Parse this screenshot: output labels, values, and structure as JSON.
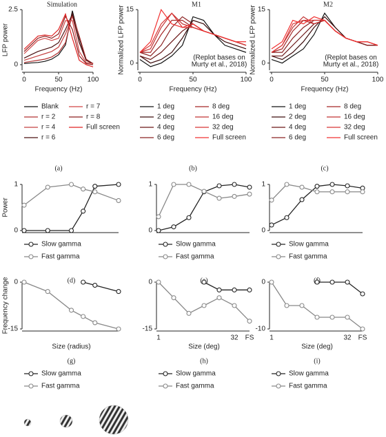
{
  "chart_data": [
    {
      "type": "line",
      "label": "(a)",
      "title": "Simulation",
      "xlabel": "Frequency (Hz)",
      "ylabel": "LFP power",
      "x": [
        0,
        10,
        20,
        30,
        40,
        50,
        60,
        70,
        80,
        90,
        100
      ],
      "xlim": [
        0,
        100
      ],
      "xticks": [
        0,
        50,
        100
      ],
      "ylim": [
        -0.25,
        2.5
      ],
      "yticks": [
        0,
        2.5
      ],
      "markers": false,
      "series": [
        {
          "name": "Blank",
          "color": "#111111",
          "values": [
            0.05,
            0.08,
            0.1,
            0.15,
            0.25,
            0.45,
            0.9,
            2.45,
            1.2,
            0.2,
            0.05
          ]
        },
        {
          "name": "r = 2",
          "color": "#b03030",
          "values": [
            0.1,
            0.15,
            0.2,
            0.25,
            0.35,
            0.55,
            1.0,
            2.3,
            1.3,
            0.25,
            0.05
          ]
        },
        {
          "name": "r = 4",
          "color": "#c44040",
          "values": [
            0.2,
            0.3,
            0.4,
            0.5,
            0.6,
            0.8,
            1.4,
            2.2,
            1.0,
            0.2,
            0.05
          ]
        },
        {
          "name": "r = 6",
          "color": "#4a1010",
          "values": [
            0.3,
            0.45,
            0.6,
            0.7,
            0.8,
            1.0,
            1.6,
            2.3,
            1.0,
            0.2,
            0.05
          ]
        },
        {
          "name": "r = 7",
          "color": "#d04545",
          "values": [
            0.5,
            0.8,
            1.1,
            1.2,
            1.1,
            1.2,
            2.0,
            2.0,
            0.6,
            0.1,
            0.05
          ]
        },
        {
          "name": "r = 8",
          "color": "#8a1c1c",
          "values": [
            0.6,
            0.9,
            1.2,
            1.3,
            1.2,
            1.4,
            2.2,
            1.6,
            0.4,
            0.05,
            0
          ]
        },
        {
          "name": "Full screen",
          "color": "#e02020",
          "values": [
            0.7,
            1.0,
            1.3,
            1.35,
            1.3,
            1.6,
            2.3,
            1.2,
            0.2,
            0,
            -0.1
          ]
        }
      ]
    },
    {
      "type": "line",
      "label": "(b)",
      "title": "M1",
      "xlabel": "Frequency (Hz)",
      "ylabel": "Normalized LFP power",
      "annotation": [
        "(Replot bases on",
        "Murty et al., 2018)"
      ],
      "x": [
        0,
        10,
        20,
        30,
        40,
        50,
        60,
        70,
        80,
        90,
        100
      ],
      "xlim": [
        0,
        100
      ],
      "xticks": [
        0,
        50,
        100
      ],
      "ylim": [
        -2,
        15
      ],
      "yticks": [
        0,
        15
      ],
      "markers": false,
      "series": [
        {
          "name": "1 deg",
          "color": "#111111",
          "values": [
            1,
            -1,
            0,
            2,
            5,
            13,
            12,
            8,
            5,
            4,
            3
          ]
        },
        {
          "name": "2 deg",
          "color": "#3a0a0a",
          "values": [
            2,
            0,
            1,
            3,
            7,
            12,
            11,
            8,
            6,
            5,
            4
          ]
        },
        {
          "name": "4 deg",
          "color": "#6a1515",
          "values": [
            2,
            1,
            3,
            6,
            9,
            11,
            9,
            8,
            7,
            6,
            5
          ]
        },
        {
          "name": "6 deg",
          "color": "#8a2020",
          "values": [
            3,
            2,
            5,
            10,
            13,
            11,
            9,
            8,
            7,
            6,
            5
          ]
        },
        {
          "name": "8 deg",
          "color": "#a52525",
          "values": [
            3,
            3,
            8,
            12,
            12,
            10,
            9,
            8,
            7,
            6,
            5
          ]
        },
        {
          "name": "16 deg",
          "color": "#c03030",
          "values": [
            3,
            4,
            10,
            14,
            11,
            10,
            9,
            8,
            7,
            6,
            5
          ]
        },
        {
          "name": "32 deg",
          "color": "#d83535",
          "values": [
            3,
            5,
            11,
            14,
            10,
            10,
            9,
            8,
            7,
            6,
            5
          ]
        },
        {
          "name": "Full screen",
          "color": "#f03030",
          "values": [
            3,
            6,
            15,
            11,
            10,
            11,
            9,
            8,
            7,
            6,
            6
          ]
        }
      ]
    },
    {
      "type": "line",
      "label": "(c)",
      "title": "M2",
      "xlabel": "Frequency (Hz)",
      "ylabel": "Normalized LFP power",
      "annotation": [
        "(Replot bases on",
        "Murty et al., 2018)"
      ],
      "x": [
        0,
        10,
        20,
        30,
        40,
        50,
        60,
        70,
        80,
        90,
        100
      ],
      "xlim": [
        0,
        100
      ],
      "xticks": [
        0,
        50,
        100
      ],
      "ylim": [
        -2,
        15
      ],
      "yticks": [
        0,
        15
      ],
      "markers": false,
      "series": [
        {
          "name": "1 deg",
          "color": "#111111",
          "values": [
            1,
            0,
            2,
            4,
            8,
            14,
            10,
            7,
            6,
            5,
            5
          ]
        },
        {
          "name": "2 deg",
          "color": "#3a0a0a",
          "values": [
            2,
            1,
            3,
            6,
            10,
            13,
            10,
            7,
            6,
            5,
            5
          ]
        },
        {
          "name": "4 deg",
          "color": "#6a1515",
          "values": [
            2,
            2,
            5,
            8,
            11,
            12,
            9,
            7,
            6,
            5,
            5
          ]
        },
        {
          "name": "6 deg",
          "color": "#8a2020",
          "values": [
            3,
            3,
            7,
            10,
            12,
            12,
            9,
            7,
            6,
            5,
            5
          ]
        },
        {
          "name": "8 deg",
          "color": "#a52525",
          "values": [
            3,
            4,
            9,
            12,
            11,
            12,
            9,
            7,
            6,
            6,
            5
          ]
        },
        {
          "name": "16 deg",
          "color": "#c03030",
          "values": [
            3,
            5,
            10,
            13,
            11,
            12,
            9,
            7,
            6,
            6,
            5
          ]
        },
        {
          "name": "32 deg",
          "color": "#d83535",
          "values": [
            3,
            5,
            11,
            12,
            12,
            12,
            9,
            7,
            6,
            6,
            5
          ]
        },
        {
          "name": "Full screen",
          "color": "#f03030",
          "values": [
            4,
            6,
            12,
            11,
            13,
            12,
            9,
            7,
            6,
            6,
            5
          ]
        }
      ]
    },
    {
      "type": "line",
      "label": "(d)",
      "ylabel": "Power",
      "x": [
        2,
        4,
        6,
        7,
        8,
        10
      ],
      "xlim": [
        2,
        10
      ],
      "ylim": [
        0,
        1
      ],
      "yticks": [
        0,
        1
      ],
      "markers": true,
      "series": [
        {
          "name": "Slow gamma",
          "color": "#222222",
          "values": [
            0,
            0,
            0,
            0.42,
            0.96,
            1
          ]
        },
        {
          "name": "Fast gamma",
          "color": "#888888",
          "values": [
            0.55,
            0.94,
            1,
            0.9,
            0.84,
            0.65
          ]
        }
      ]
    },
    {
      "type": "line",
      "label": "(e)",
      "categories": [
        null,
        null,
        null,
        null,
        null,
        null,
        null
      ],
      "ylim": [
        0,
        1
      ],
      "yticks": [
        0,
        1
      ],
      "markers": true,
      "series": [
        {
          "name": "Slow gamma",
          "color": "#222222",
          "values": [
            0,
            0.08,
            0.28,
            0.84,
            0.97,
            1,
            0.94
          ]
        },
        {
          "name": "Fast gamma",
          "color": "#888888",
          "values": [
            0.3,
            1,
            1,
            0.85,
            0.7,
            0.74,
            0.79
          ]
        }
      ]
    },
    {
      "type": "line",
      "label": "(f)",
      "categories": [
        null,
        null,
        null,
        null,
        null,
        null,
        null
      ],
      "ylim": [
        0,
        1
      ],
      "yticks": [
        0,
        1
      ],
      "markers": true,
      "series": [
        {
          "name": "Slow gamma",
          "color": "#222222",
          "values": [
            0.12,
            0.28,
            0.67,
            0.96,
            1,
            0.97,
            0.92
          ]
        },
        {
          "name": "Fast gamma",
          "color": "#888888",
          "values": [
            0.66,
            1,
            0.94,
            0.84,
            0.84,
            0.84,
            0.84
          ]
        }
      ]
    },
    {
      "type": "line",
      "label": "(g)",
      "xlabel": "Size (radius)",
      "ylabel": "Frequency change",
      "x": [
        2,
        4,
        6,
        7,
        8,
        10
      ],
      "xlim": [
        2,
        10
      ],
      "ylim": [
        -15,
        0
      ],
      "yticks": [
        -15,
        0
      ],
      "markers": true,
      "series": [
        {
          "name": "Slow gamma",
          "color": "#222222",
          "values": [
            null,
            null,
            null,
            0,
            -1,
            -3
          ]
        },
        {
          "name": "Fast gamma",
          "color": "#888888",
          "values": [
            0,
            -3,
            -9,
            -11,
            -13,
            -15
          ]
        }
      ]
    },
    {
      "type": "line",
      "label": "(h)",
      "xlabel": "Size (deg)",
      "categories": [
        "1",
        null,
        null,
        null,
        null,
        "32",
        "FS"
      ],
      "ylim": [
        -15,
        0
      ],
      "yticks": [
        -15,
        0
      ],
      "markers": true,
      "series": [
        {
          "name": "Slow gamma",
          "color": "#222222",
          "values": [
            null,
            null,
            null,
            0,
            -2.5,
            -2.5,
            -2.5
          ]
        },
        {
          "name": "Fast gamma",
          "color": "#888888",
          "values": [
            0,
            -5,
            -10,
            -7.5,
            -5,
            -7.5,
            -12.5
          ]
        }
      ]
    },
    {
      "type": "line",
      "label": "(i)",
      "xlabel": "Size (deg)",
      "categories": [
        "1",
        null,
        null,
        null,
        null,
        "32",
        "FS"
      ],
      "ylim": [
        -10,
        0
      ],
      "yticks": [
        -10,
        0
      ],
      "markers": true,
      "series": [
        {
          "name": "Slow gamma",
          "color": "#222222",
          "values": [
            null,
            null,
            null,
            0,
            0,
            0,
            -2.5
          ]
        },
        {
          "name": "Fast gamma",
          "color": "#888888",
          "values": [
            0,
            -5,
            -5,
            -7.5,
            -7.5,
            -7.5,
            -10
          ]
        }
      ]
    }
  ]
}
